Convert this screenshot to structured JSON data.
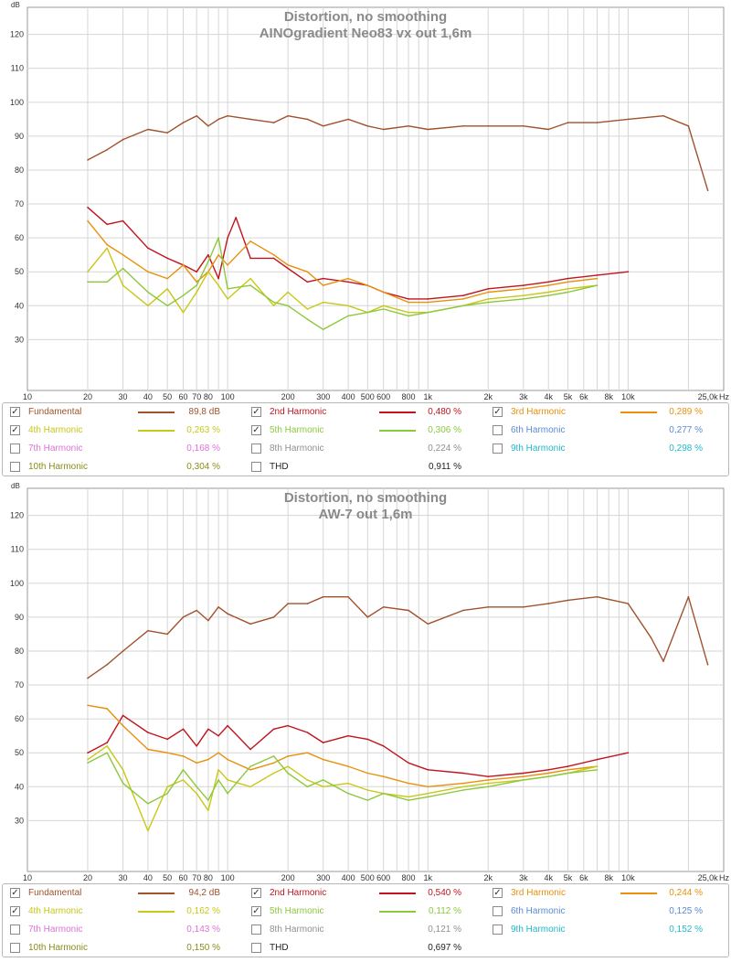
{
  "chart_data": [
    {
      "type": "line",
      "title": "Distortion, no smoothing",
      "subtitle": "AINOgradient Neo83 vx out 1,6m",
      "ylabel": "dB",
      "xlabel": "Hz",
      "x_scale": "log",
      "xlim": [
        10,
        30000
      ],
      "ylim": [
        15,
        128
      ],
      "y_ticks": [
        30,
        40,
        50,
        60,
        70,
        80,
        90,
        100,
        110,
        120
      ],
      "x_ticks": [
        {
          "v": 10,
          "label": "10"
        },
        {
          "v": 20,
          "label": "20"
        },
        {
          "v": 30,
          "label": "30"
        },
        {
          "v": 40,
          "label": "40"
        },
        {
          "v": 50,
          "label": "50"
        },
        {
          "v": 60,
          "label": "60"
        },
        {
          "v": 70,
          "label": "70"
        },
        {
          "v": 80,
          "label": "80"
        },
        {
          "v": 100,
          "label": "100"
        },
        {
          "v": 200,
          "label": "200"
        },
        {
          "v": 300,
          "label": "300"
        },
        {
          "v": 400,
          "label": "400"
        },
        {
          "v": 500,
          "label": "500"
        },
        {
          "v": 600,
          "label": "600"
        },
        {
          "v": 800,
          "label": "800"
        },
        {
          "v": 1000,
          "label": "1k"
        },
        {
          "v": 2000,
          "label": "2k"
        },
        {
          "v": 3000,
          "label": "3k"
        },
        {
          "v": 4000,
          "label": "4k"
        },
        {
          "v": 5000,
          "label": "5k"
        },
        {
          "v": 6000,
          "label": "6k"
        },
        {
          "v": 8000,
          "label": "8k"
        },
        {
          "v": 10000,
          "label": "10k"
        },
        {
          "v": 25000,
          "label": "25,0k"
        }
      ],
      "grid": true,
      "series": [
        {
          "name": "Fundamental",
          "color": "#a0522d",
          "x": [
            20,
            25,
            30,
            40,
            50,
            60,
            70,
            80,
            90,
            100,
            130,
            170,
            200,
            250,
            300,
            400,
            500,
            600,
            800,
            1000,
            1500,
            2000,
            3000,
            4000,
            5000,
            7000,
            10000,
            15000,
            20000,
            25000
          ],
          "values": [
            83,
            86,
            89,
            92,
            91,
            94,
            96,
            93,
            95,
            96,
            95,
            94,
            96,
            95,
            93,
            95,
            93,
            92,
            93,
            92,
            93,
            93,
            93,
            92,
            94,
            94,
            95,
            96,
            93,
            74
          ]
        },
        {
          "name": "2nd Harmonic",
          "color": "#c0141e",
          "x": [
            20,
            25,
            30,
            40,
            50,
            60,
            70,
            80,
            90,
            100,
            110,
            130,
            170,
            200,
            250,
            300,
            400,
            500,
            600,
            800,
            1000,
            1500,
            2000,
            3000,
            4000,
            5000,
            7000,
            10000
          ],
          "values": [
            69,
            64,
            65,
            57,
            54,
            52,
            50,
            55,
            48,
            60,
            66,
            54,
            54,
            51,
            47,
            48,
            47,
            46,
            44,
            42,
            42,
            43,
            45,
            46,
            47,
            48,
            49,
            50
          ]
        },
        {
          "name": "3rd Harmonic",
          "color": "#e8900c",
          "x": [
            20,
            25,
            30,
            40,
            50,
            60,
            70,
            80,
            90,
            100,
            130,
            170,
            200,
            250,
            300,
            400,
            500,
            600,
            800,
            1000,
            1500,
            2000,
            3000,
            4000,
            5000,
            7000
          ],
          "values": [
            65,
            58,
            55,
            50,
            48,
            52,
            47,
            50,
            55,
            52,
            59,
            55,
            52,
            50,
            46,
            48,
            46,
            44,
            41,
            41,
            42,
            44,
            45,
            46,
            47,
            48
          ]
        },
        {
          "name": "4th Harmonic",
          "color": "#c8c816",
          "x": [
            20,
            25,
            30,
            40,
            50,
            60,
            70,
            80,
            90,
            100,
            130,
            170,
            200,
            250,
            300,
            400,
            500,
            600,
            800,
            1000,
            1500,
            2000,
            3000,
            4000,
            5000,
            7000
          ],
          "values": [
            50,
            57,
            46,
            40,
            45,
            38,
            44,
            50,
            46,
            42,
            48,
            40,
            44,
            39,
            41,
            40,
            38,
            40,
            38,
            38,
            40,
            42,
            43,
            44,
            45,
            46
          ]
        },
        {
          "name": "5th Harmonic",
          "color": "#8cc83c",
          "x": [
            20,
            25,
            30,
            40,
            50,
            60,
            70,
            80,
            90,
            100,
            130,
            170,
            200,
            250,
            300,
            400,
            500,
            600,
            800,
            1000,
            1500,
            2000,
            3000,
            4000,
            5000,
            7000
          ],
          "values": [
            47,
            47,
            51,
            44,
            40,
            43,
            46,
            53,
            60,
            45,
            46,
            41,
            40,
            36,
            33,
            37,
            38,
            39,
            37,
            38,
            40,
            41,
            42,
            43,
            44,
            46
          ]
        }
      ],
      "legend": [
        {
          "label": "Fundamental",
          "value": "89,8 dB",
          "checked": true,
          "color": "#a0522d"
        },
        {
          "label": "2nd Harmonic",
          "value": "0,480 %",
          "checked": true,
          "color": "#c0141e"
        },
        {
          "label": "3rd Harmonic",
          "value": "0,289 %",
          "checked": true,
          "color": "#e8900c"
        },
        {
          "label": "4th Harmonic",
          "value": "0,263 %",
          "checked": true,
          "color": "#c8c816"
        },
        {
          "label": "5th Harmonic",
          "value": "0,306 %",
          "checked": true,
          "color": "#8cc83c"
        },
        {
          "label": "6th Harmonic",
          "value": "0,277 %",
          "checked": false,
          "color": "#5a8ad6"
        },
        {
          "label": "7th Harmonic",
          "value": "0,168 %",
          "checked": false,
          "color": "#e070d8"
        },
        {
          "label": "8th Harmonic",
          "value": "0,224 %",
          "checked": false,
          "color": "#909090"
        },
        {
          "label": "9th Harmonic",
          "value": "0,298 %",
          "checked": false,
          "color": "#20b8c8"
        },
        {
          "label": "10th Harmonic",
          "value": "0,304 %",
          "checked": false,
          "color": "#8c8c18"
        },
        {
          "label": "THD",
          "value": "0,911 %",
          "checked": false,
          "color": "#303030"
        }
      ]
    },
    {
      "type": "line",
      "title": "Distortion, no smoothing",
      "subtitle": "AW-7 out 1,6m",
      "ylabel": "dB",
      "xlabel": "Hz",
      "x_scale": "log",
      "xlim": [
        10,
        30000
      ],
      "ylim": [
        15,
        128
      ],
      "y_ticks": [
        30,
        40,
        50,
        60,
        70,
        80,
        90,
        100,
        110,
        120
      ],
      "x_ticks": [
        {
          "v": 10,
          "label": "10"
        },
        {
          "v": 20,
          "label": "20"
        },
        {
          "v": 30,
          "label": "30"
        },
        {
          "v": 40,
          "label": "40"
        },
        {
          "v": 50,
          "label": "50"
        },
        {
          "v": 60,
          "label": "60"
        },
        {
          "v": 70,
          "label": "70"
        },
        {
          "v": 80,
          "label": "80"
        },
        {
          "v": 100,
          "label": "100"
        },
        {
          "v": 200,
          "label": "200"
        },
        {
          "v": 300,
          "label": "300"
        },
        {
          "v": 400,
          "label": "400"
        },
        {
          "v": 500,
          "label": "500"
        },
        {
          "v": 600,
          "label": "600"
        },
        {
          "v": 800,
          "label": "800"
        },
        {
          "v": 1000,
          "label": "1k"
        },
        {
          "v": 2000,
          "label": "2k"
        },
        {
          "v": 3000,
          "label": "3k"
        },
        {
          "v": 4000,
          "label": "4k"
        },
        {
          "v": 5000,
          "label": "5k"
        },
        {
          "v": 6000,
          "label": "6k"
        },
        {
          "v": 8000,
          "label": "8k"
        },
        {
          "v": 10000,
          "label": "10k"
        },
        {
          "v": 25000,
          "label": "25,0k"
        }
      ],
      "grid": true,
      "series": [
        {
          "name": "Fundamental",
          "color": "#a0522d",
          "x": [
            20,
            25,
            30,
            40,
            50,
            60,
            70,
            80,
            90,
            100,
            130,
            170,
            200,
            250,
            300,
            400,
            500,
            600,
            800,
            1000,
            1500,
            2000,
            3000,
            4000,
            5000,
            7000,
            10000,
            13000,
            15000,
            20000,
            25000
          ],
          "values": [
            72,
            76,
            80,
            86,
            85,
            90,
            92,
            89,
            93,
            91,
            88,
            90,
            94,
            94,
            96,
            96,
            90,
            93,
            92,
            88,
            92,
            93,
            93,
            94,
            95,
            96,
            94,
            84,
            77,
            96,
            76
          ]
        },
        {
          "name": "2nd Harmonic",
          "color": "#c0141e",
          "x": [
            20,
            25,
            30,
            40,
            50,
            60,
            70,
            80,
            90,
            100,
            130,
            170,
            200,
            250,
            300,
            400,
            500,
            600,
            800,
            1000,
            1500,
            2000,
            3000,
            4000,
            5000,
            7000,
            10000
          ],
          "values": [
            50,
            53,
            61,
            56,
            54,
            57,
            52,
            57,
            55,
            58,
            51,
            57,
            58,
            56,
            53,
            55,
            54,
            52,
            47,
            45,
            44,
            43,
            44,
            45,
            46,
            48,
            50
          ]
        },
        {
          "name": "3rd Harmonic",
          "color": "#e8900c",
          "x": [
            20,
            25,
            30,
            40,
            50,
            60,
            70,
            80,
            90,
            100,
            130,
            170,
            200,
            250,
            300,
            400,
            500,
            600,
            800,
            1000,
            1500,
            2000,
            3000,
            4000,
            5000,
            7000
          ],
          "values": [
            64,
            63,
            58,
            51,
            50,
            49,
            47,
            48,
            50,
            48,
            45,
            47,
            49,
            50,
            48,
            46,
            44,
            43,
            41,
            40,
            41,
            42,
            43,
            44,
            45,
            46
          ]
        },
        {
          "name": "4th Harmonic",
          "color": "#c8c816",
          "x": [
            20,
            25,
            30,
            40,
            50,
            60,
            70,
            80,
            90,
            100,
            130,
            170,
            200,
            250,
            300,
            400,
            500,
            600,
            800,
            1000,
            1500,
            2000,
            3000,
            4000,
            5000,
            7000
          ],
          "values": [
            48,
            52,
            45,
            27,
            40,
            42,
            38,
            33,
            45,
            42,
            40,
            44,
            46,
            42,
            40,
            41,
            39,
            38,
            37,
            38,
            40,
            41,
            42,
            43,
            44,
            46
          ]
        },
        {
          "name": "5th Harmonic",
          "color": "#8cc83c",
          "x": [
            20,
            25,
            30,
            40,
            50,
            60,
            70,
            80,
            90,
            100,
            130,
            170,
            200,
            250,
            300,
            400,
            500,
            600,
            800,
            1000,
            1500,
            2000,
            3000,
            4000,
            5000,
            7000
          ],
          "values": [
            47,
            50,
            41,
            35,
            38,
            45,
            40,
            36,
            42,
            38,
            46,
            49,
            44,
            40,
            42,
            38,
            36,
            38,
            36,
            37,
            39,
            40,
            42,
            43,
            44,
            45
          ]
        }
      ],
      "legend": [
        {
          "label": "Fundamental",
          "value": "94,2 dB",
          "checked": true,
          "color": "#a0522d"
        },
        {
          "label": "2nd Harmonic",
          "value": "0,540 %",
          "checked": true,
          "color": "#c0141e"
        },
        {
          "label": "3rd Harmonic",
          "value": "0,244 %",
          "checked": true,
          "color": "#e8900c"
        },
        {
          "label": "4th Harmonic",
          "value": "0,162 %",
          "checked": true,
          "color": "#c8c816"
        },
        {
          "label": "5th Harmonic",
          "value": "0,112 %",
          "checked": true,
          "color": "#8cc83c"
        },
        {
          "label": "6th Harmonic",
          "value": "0,125 %",
          "checked": false,
          "color": "#5a8ad6"
        },
        {
          "label": "7th Harmonic",
          "value": "0,143 %",
          "checked": false,
          "color": "#e070d8"
        },
        {
          "label": "8th Harmonic",
          "value": "0,121 %",
          "checked": false,
          "color": "#909090"
        },
        {
          "label": "9th Harmonic",
          "value": "0,152 %",
          "checked": false,
          "color": "#20b8c8"
        },
        {
          "label": "10th Harmonic",
          "value": "0,150 %",
          "checked": false,
          "color": "#8c8c18"
        },
        {
          "label": "THD",
          "value": "0,697 %",
          "checked": false,
          "color": "#303030"
        }
      ]
    }
  ]
}
